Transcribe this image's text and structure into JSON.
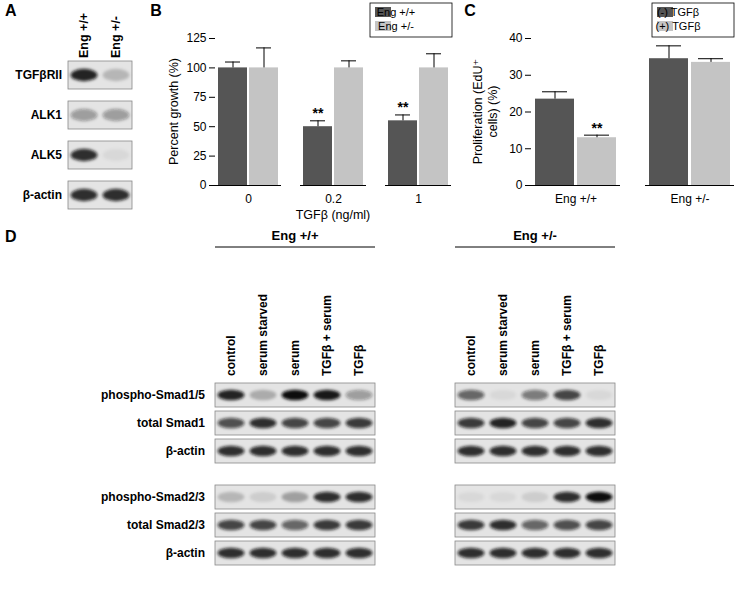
{
  "chart_data": [
    {
      "type": "bar",
      "title": "B",
      "y_label": "Percent growth (%)",
      "x_label": "TGFβ (ng/ml)",
      "categories": [
        "0",
        "0.2",
        "1"
      ],
      "series": [
        {
          "name": "Eng +/+",
          "color": "#555555",
          "values": [
            100,
            50,
            55
          ],
          "errors": [
            5,
            5,
            5
          ],
          "annotations": [
            null,
            "**",
            "**"
          ]
        },
        {
          "name": "Eng +/-",
          "color": "#c4c4c4",
          "values": [
            100,
            100,
            100
          ],
          "errors": [
            17,
            6,
            12
          ],
          "annotations": [
            null,
            null,
            null
          ]
        }
      ],
      "ylim": [
        0,
        125
      ],
      "yticks": [
        0,
        25,
        50,
        75,
        100,
        125
      ],
      "legend": "top-right"
    },
    {
      "type": "bar",
      "title": "C",
      "y_label": "Proliferation (EdU⁺\ncells) (%)",
      "categories": [
        "Eng +/+",
        "Eng +/-"
      ],
      "series": [
        {
          "name": "(-) TGFβ",
          "color": "#555555",
          "values": [
            23.5,
            34.5
          ],
          "errors": [
            2,
            3.5
          ],
          "annotations": [
            null,
            null
          ]
        },
        {
          "name": "(+) TGFβ",
          "color": "#c4c4c4",
          "values": [
            13,
            33.5
          ],
          "errors": [
            0.7,
            1
          ],
          "annotations": [
            "**",
            null
          ]
        }
      ],
      "ylim": [
        0,
        40
      ],
      "yticks": [
        0,
        10,
        20,
        30,
        40
      ],
      "legend": "top-right"
    }
  ],
  "blots": [
    {
      "title": "A",
      "lanes": [
        "Eng +/+",
        "Eng +/-"
      ],
      "rows": [
        {
          "label": "TGFβRII",
          "bands": [
            0.9,
            0.2
          ]
        },
        {
          "label": "ALK1",
          "bands": [
            0.35,
            0.35
          ]
        },
        {
          "label": "ALK5",
          "bands": [
            0.85,
            0.05
          ]
        },
        {
          "label": "β-actin",
          "bands": [
            0.85,
            0.85
          ]
        }
      ]
    },
    {
      "title": "D",
      "groups": [
        "Eng +/+",
        "Eng +/-"
      ],
      "lanes": [
        "control",
        "serum starved",
        "serum",
        "TGFβ + serum",
        "TGFβ"
      ],
      "blocks": [
        [
          {
            "label": "phospho-Smad1/5",
            "bands": [
              [
                0.9,
                0.25,
                1,
                0.95,
                0.35
              ],
              [
                0.6,
                0.05,
                0.5,
                0.75,
                0.05
              ]
            ]
          },
          {
            "label": "total Smad1",
            "bands": [
              [
                0.7,
                0.85,
                0.75,
                0.75,
                0.8
              ],
              [
                0.8,
                0.9,
                0.75,
                0.75,
                0.85
              ]
            ]
          },
          {
            "label": "β-actin",
            "bands": [
              [
                0.85,
                0.85,
                0.85,
                0.85,
                0.85
              ],
              [
                0.85,
                0.85,
                0.85,
                0.85,
                0.85
              ]
            ]
          }
        ],
        [
          {
            "label": "phospho-Smad2/3",
            "bands": [
              [
                0.2,
                0.1,
                0.3,
                0.85,
                0.85
              ],
              [
                0.05,
                0.05,
                0.1,
                0.85,
                1
              ]
            ]
          },
          {
            "label": "total Smad2/3",
            "bands": [
              [
                0.75,
                0.75,
                0.6,
                0.8,
                0.8
              ],
              [
                0.8,
                0.85,
                0.6,
                0.7,
                0.75
              ]
            ]
          },
          {
            "label": "β-actin",
            "bands": [
              [
                0.85,
                0.85,
                0.85,
                0.85,
                0.85
              ],
              [
                0.85,
                0.85,
                0.85,
                0.85,
                0.85
              ]
            ]
          }
        ]
      ]
    }
  ]
}
